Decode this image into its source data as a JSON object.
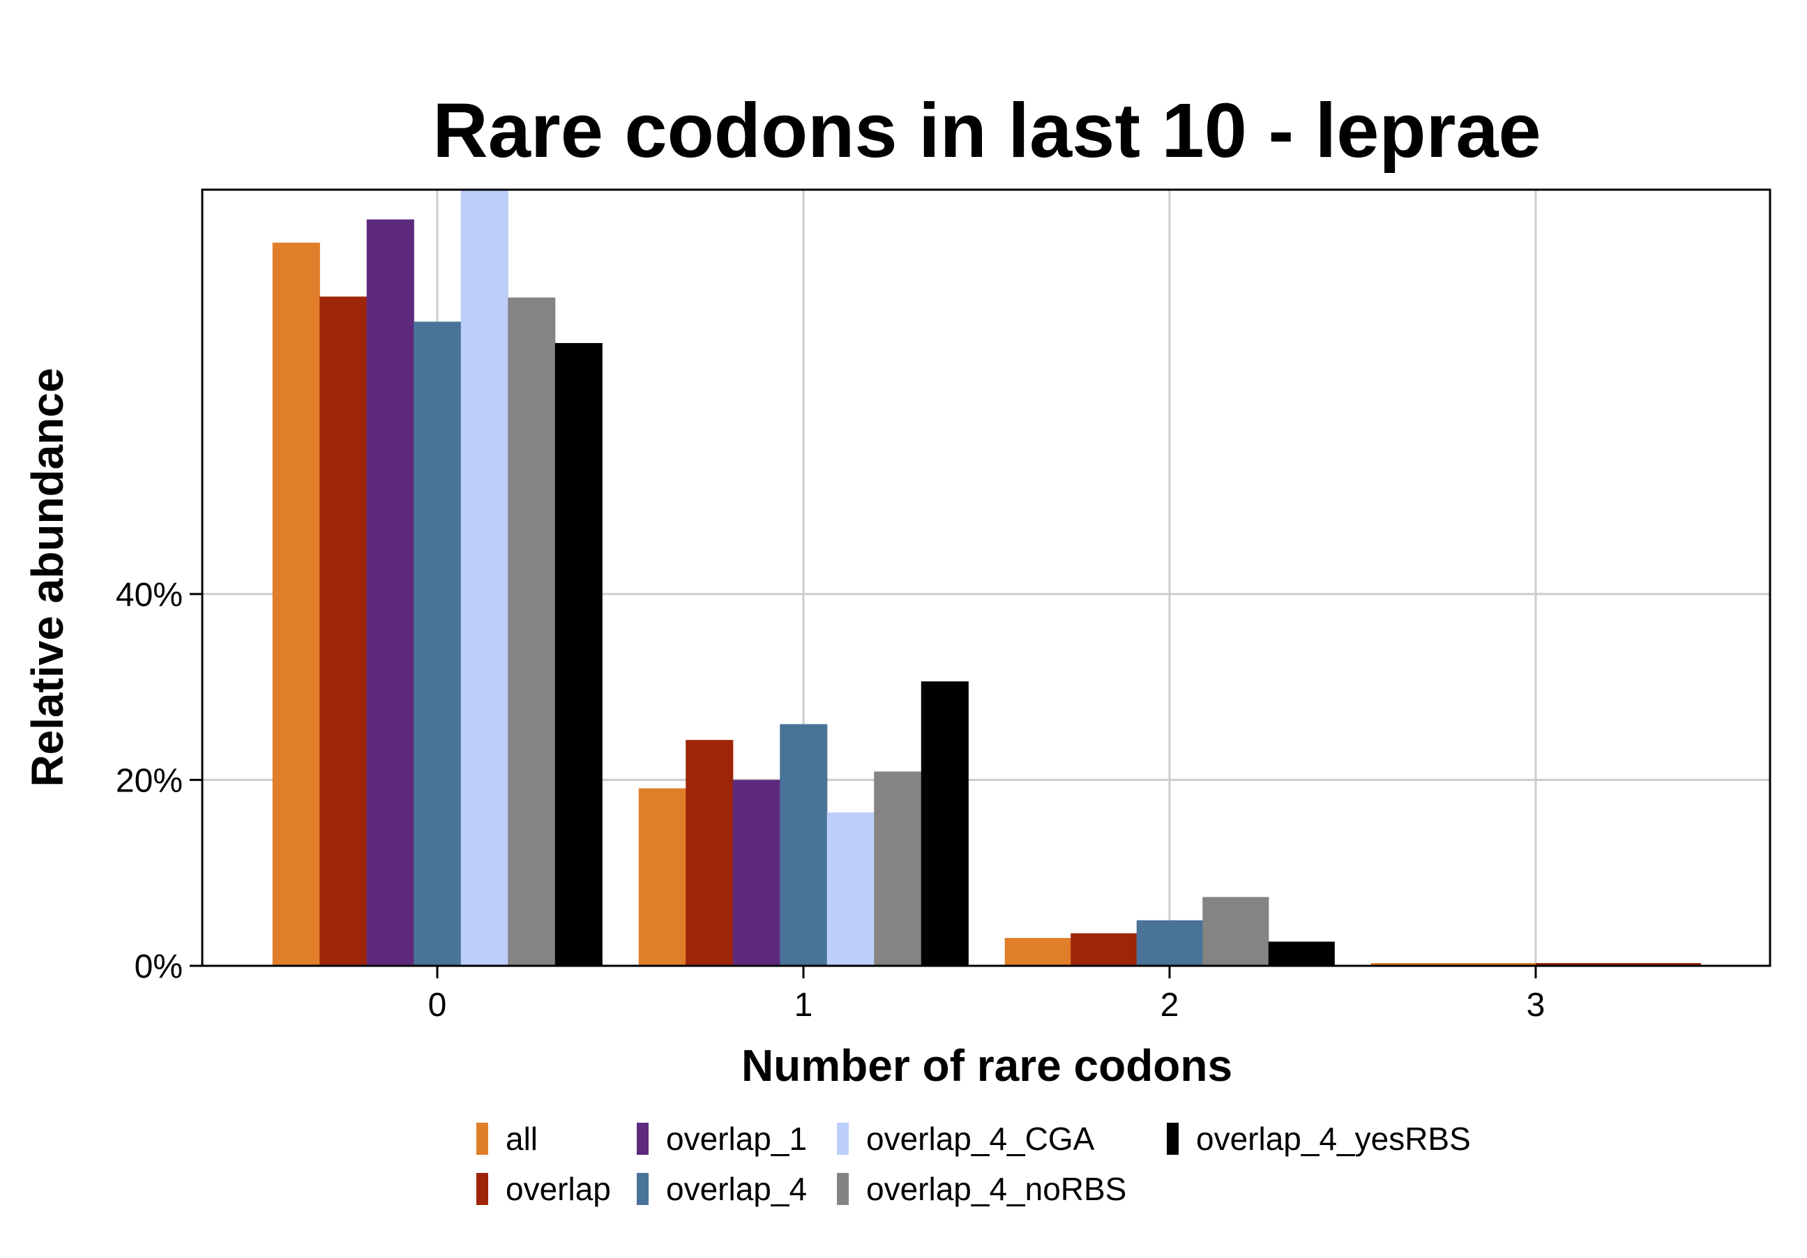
{
  "chart_data": {
    "type": "bar",
    "title": "Rare codons in last 10 - leprae",
    "xlabel": "Number of rare codons",
    "ylabel": "Relative abundance",
    "categories": [
      "0",
      "1",
      "2",
      "3"
    ],
    "y_ticks": [
      "0%",
      "20%",
      "40%"
    ],
    "ylim": [
      0,
      83.5
    ],
    "grid": true,
    "legend_position": "bottom",
    "series": [
      {
        "name": "all",
        "color": "#e07e2a",
        "values": [
          77.8,
          19.1,
          3.0,
          0.3
        ]
      },
      {
        "name": "overlap",
        "color": "#9e250a",
        "values": [
          72.0,
          24.3,
          3.5,
          0.3
        ]
      },
      {
        "name": "overlap_1",
        "color": "#5e2a7e",
        "values": [
          80.3,
          20.0,
          null,
          null
        ]
      },
      {
        "name": "overlap_4",
        "color": "#4a7399",
        "values": [
          69.3,
          26.0,
          4.9,
          null
        ]
      },
      {
        "name": "overlap_4_CGA",
        "color": "#bccffa",
        "values": [
          83.5,
          16.5,
          null,
          null
        ]
      },
      {
        "name": "overlap_4_noRBS",
        "color": "#858483",
        "values": [
          71.9,
          20.9,
          7.4,
          null
        ]
      },
      {
        "name": "overlap_4_yesRBS",
        "color": "#000000",
        "values": [
          67.0,
          30.6,
          2.6,
          null
        ]
      }
    ]
  }
}
